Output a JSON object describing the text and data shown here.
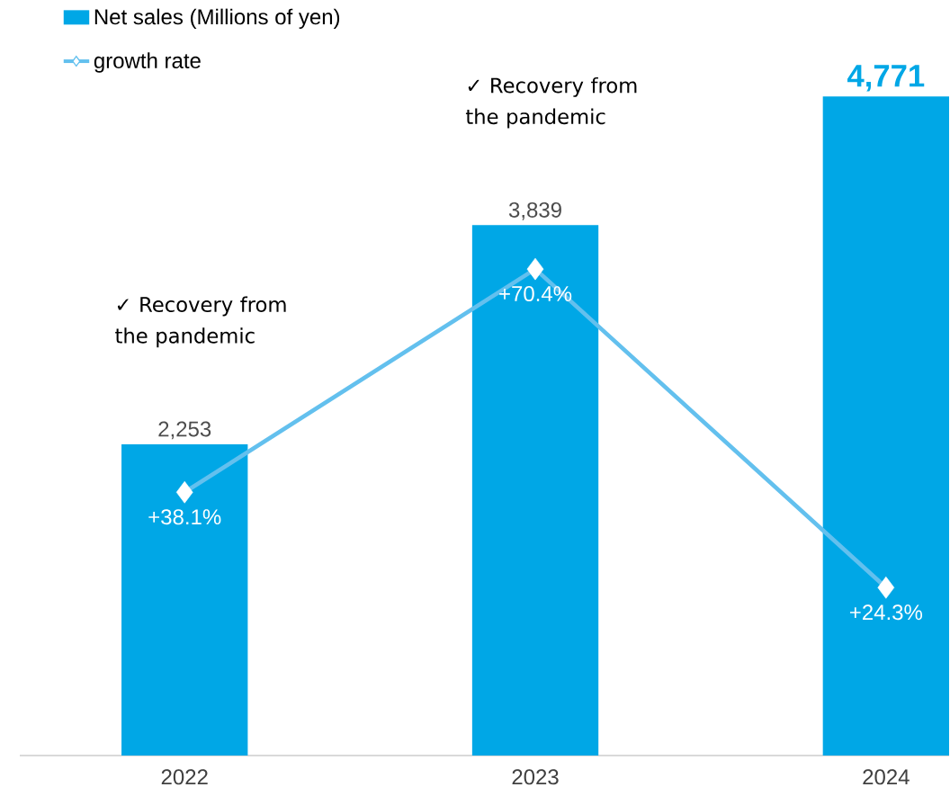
{
  "chart_data": {
    "type": "bar",
    "categories": [
      "2022",
      "2023",
      "2024"
    ],
    "series": [
      {
        "name": "Net sales (Millions of yen)",
        "color": "#00a7e6",
        "values": [
          2253,
          3839,
          4771
        ],
        "value_labels": [
          "2,253",
          "3,839",
          "4,771"
        ]
      },
      {
        "name": "growth rate",
        "type": "line",
        "axis": "y2",
        "color": "#63c0ee",
        "marker": "diamond",
        "values": [
          38.1,
          70.4,
          24.3
        ],
        "value_labels": [
          "+38.1%",
          "+70.4%",
          "+24.3%"
        ]
      }
    ],
    "tick_labels": "x",
    "legend": "top left",
    "annotations": [
      "✓ Recovery from the pandemic",
      "✓ Recovery from the pandemic"
    ]
  }
}
